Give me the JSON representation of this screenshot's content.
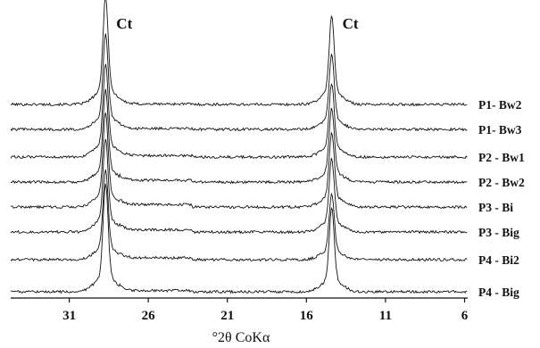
{
  "chart_data": {
    "type": "line",
    "title": "",
    "xlabel": "°2θ CoKα",
    "ylabel": "",
    "x_reversed": true,
    "xlim": [
      34.7,
      5.8
    ],
    "xticks": [
      31,
      26,
      21,
      16,
      11,
      6
    ],
    "xtick_labels": [
      "31",
      "26",
      "21",
      "16",
      "11",
      "6"
    ],
    "peak_labels": [
      {
        "text": "Ct",
        "x": 28.7
      },
      {
        "text": "Ct",
        "x": 14.4
      }
    ],
    "series": [
      {
        "name": "P1- Bw2",
        "baseline": 0.97,
        "peaks": [
          {
            "x": 28.7,
            "height": 7.8
          },
          {
            "x": 14.4,
            "height": 6.4
          }
        ],
        "broad_hump": 0.1
      },
      {
        "name": "P1- Bw3",
        "baseline": 0.95,
        "peaks": [
          {
            "x": 28.7,
            "height": 6.9
          },
          {
            "x": 14.4,
            "height": 5.4
          }
        ],
        "broad_hump": 0.2
      },
      {
        "name": "P2 - Bw1",
        "baseline": 0.96,
        "peaks": [
          {
            "x": 28.7,
            "height": 6.7
          },
          {
            "x": 14.4,
            "height": 5.3
          }
        ],
        "broad_hump": 0.35
      },
      {
        "name": "P2 - Bw2",
        "baseline": 0.95,
        "peaks": [
          {
            "x": 28.7,
            "height": 6.7
          },
          {
            "x": 14.4,
            "height": 5.3
          }
        ],
        "broad_hump": 0.45
      },
      {
        "name": "P3 - Bi",
        "baseline": 0.96,
        "peaks": [
          {
            "x": 28.7,
            "height": 6.8
          },
          {
            "x": 14.4,
            "height": 5.4
          }
        ],
        "broad_hump": 0.6
      },
      {
        "name": "P3 - Big",
        "baseline": 0.95,
        "peaks": [
          {
            "x": 28.7,
            "height": 6.7
          },
          {
            "x": 14.4,
            "height": 5.3
          }
        ],
        "broad_hump": 0.55
      },
      {
        "name": "P4 - Bi2",
        "baseline": 0.96,
        "peaks": [
          {
            "x": 28.7,
            "height": 6.5
          },
          {
            "x": 14.4,
            "height": 4.8
          }
        ],
        "broad_hump": 0.45
      },
      {
        "name": "P4 - Big",
        "baseline": 0.95,
        "peaks": [
          {
            "x": 28.7,
            "height": 7.8
          },
          {
            "x": 14.4,
            "height": 6.0
          }
        ],
        "broad_hump": 0.3
      }
    ],
    "grid": false,
    "legend": "right-labels",
    "line_color": "#111111"
  }
}
